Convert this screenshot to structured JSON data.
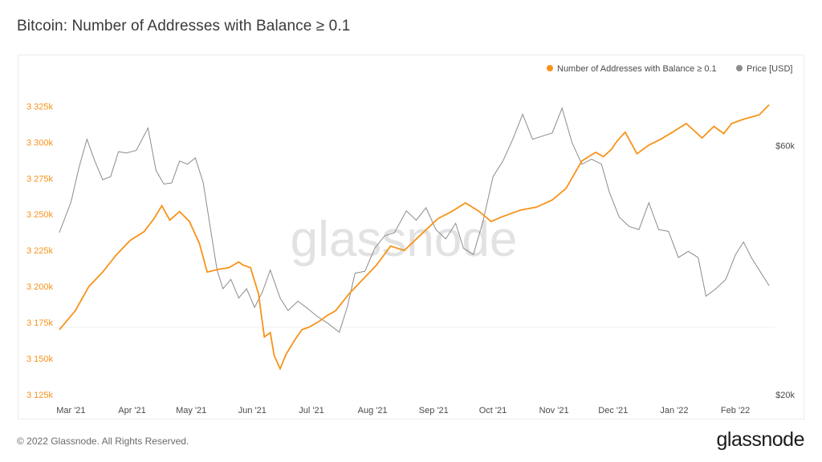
{
  "header": {
    "title": "Bitcoin: Number of Addresses with Balance ≥ 0.1"
  },
  "footer": {
    "copyright": "© 2022 Glassnode. All Rights Reserved.",
    "brand": "glassnode"
  },
  "watermark": "glassnode",
  "colors": {
    "addresses": "#f7931a",
    "price": "#8c8c8c"
  },
  "chart_data": {
    "type": "line",
    "title": "Bitcoin: Number of Addresses with Balance ≥ 0.1",
    "legend": {
      "placement": "top-right",
      "entries": [
        "Number of Addresses with Balance ≥ 0.1",
        "Price [USD]"
      ]
    },
    "x_tick_labels": [
      "Mar '21",
      "Apr '21",
      "May '21",
      "Jun '21",
      "Jul '21",
      "Aug '21",
      "Sep '21",
      "Oct '21",
      "Nov '21",
      "Dec '21",
      "Jan '22",
      "Feb '22"
    ],
    "y_left": {
      "ticks": [
        3125000,
        3150000,
        3175000,
        3200000,
        3225000,
        3250000,
        3275000,
        3300000,
        3325000
      ],
      "tick_labels": [
        "3 125k",
        "3 150k",
        "3 175k",
        "3 200k",
        "3 225k",
        "3 250k",
        "3 275k",
        "3 300k",
        "3 325k"
      ],
      "range": [
        3125000,
        3328000
      ]
    },
    "y_right": {
      "ticks": [
        20000,
        60000
      ],
      "tick_labels": [
        "$20k",
        "$60k"
      ],
      "range": [
        20000,
        67000
      ]
    },
    "grid": false,
    "series": [
      {
        "name": "Number of Addresses with Balance ≥ 0.1",
        "axis": "left",
        "x": [
          "2021-02-28",
          "2021-03-08",
          "2021-03-15",
          "2021-03-22",
          "2021-03-29",
          "2021-04-05",
          "2021-04-12",
          "2021-04-17",
          "2021-04-21",
          "2021-04-25",
          "2021-04-30",
          "2021-05-05",
          "2021-05-10",
          "2021-05-14",
          "2021-05-20",
          "2021-05-25",
          "2021-05-30",
          "2021-06-01",
          "2021-06-05",
          "2021-06-09",
          "2021-06-12",
          "2021-06-15",
          "2021-06-17",
          "2021-06-20",
          "2021-06-23",
          "2021-06-27",
          "2021-07-01",
          "2021-07-05",
          "2021-07-10",
          "2021-07-14",
          "2021-07-18",
          "2021-07-25",
          "2021-08-01",
          "2021-08-08",
          "2021-08-15",
          "2021-08-22",
          "2021-09-01",
          "2021-09-08",
          "2021-09-15",
          "2021-09-22",
          "2021-09-29",
          "2021-10-05",
          "2021-10-10",
          "2021-10-20",
          "2021-10-28",
          "2021-11-05",
          "2021-11-12",
          "2021-11-20",
          "2021-11-27",
          "2021-12-01",
          "2021-12-05",
          "2021-12-08",
          "2021-12-12",
          "2021-12-18",
          "2021-12-24",
          "2021-12-30",
          "2022-01-05",
          "2022-01-12",
          "2022-01-20",
          "2022-01-26",
          "2022-01-31",
          "2022-02-04",
          "2022-02-10",
          "2022-02-18",
          "2022-02-23"
        ],
        "values": [
          3170000,
          3183000,
          3200000,
          3210000,
          3222000,
          3232000,
          3238000,
          3247000,
          3256000,
          3246000,
          3252000,
          3245000,
          3230000,
          3210000,
          3212000,
          3213000,
          3217000,
          3215000,
          3213000,
          3195000,
          3165000,
          3168000,
          3152000,
          3143000,
          3153000,
          3162000,
          3170000,
          3172000,
          3176000,
          3180000,
          3183000,
          3195000,
          3205000,
          3215000,
          3228000,
          3225000,
          3238000,
          3247000,
          3252000,
          3258000,
          3252000,
          3245000,
          3248000,
          3253000,
          3255000,
          3260000,
          3268000,
          3287000,
          3293000,
          3290000,
          3295000,
          3301000,
          3307000,
          3292000,
          3298000,
          3302000,
          3307000,
          3313000,
          3303000,
          3311000,
          3306000,
          3313000,
          3316000,
          3319000,
          3326000
        ]
      },
      {
        "name": "Price [USD]",
        "axis": "right",
        "x": [
          "2021-02-28",
          "2021-03-03",
          "2021-03-06",
          "2021-03-10",
          "2021-03-14",
          "2021-03-18",
          "2021-03-22",
          "2021-03-26",
          "2021-03-30",
          "2021-04-03",
          "2021-04-08",
          "2021-04-14",
          "2021-04-18",
          "2021-04-22",
          "2021-04-26",
          "2021-04-30",
          "2021-05-04",
          "2021-05-08",
          "2021-05-12",
          "2021-05-16",
          "2021-05-19",
          "2021-05-22",
          "2021-05-26",
          "2021-05-30",
          "2021-06-03",
          "2021-06-07",
          "2021-06-11",
          "2021-06-15",
          "2021-06-20",
          "2021-06-24",
          "2021-06-29",
          "2021-07-04",
          "2021-07-09",
          "2021-07-14",
          "2021-07-20",
          "2021-07-24",
          "2021-07-28",
          "2021-08-02",
          "2021-08-07",
          "2021-08-12",
          "2021-08-17",
          "2021-08-23",
          "2021-08-28",
          "2021-09-02",
          "2021-09-07",
          "2021-09-12",
          "2021-09-17",
          "2021-09-21",
          "2021-09-26",
          "2021-10-01",
          "2021-10-06",
          "2021-10-11",
          "2021-10-16",
          "2021-10-21",
          "2021-10-26",
          "2021-10-31",
          "2021-11-05",
          "2021-11-10",
          "2021-11-15",
          "2021-11-20",
          "2021-11-25",
          "2021-11-30",
          "2021-12-04",
          "2021-12-09",
          "2021-12-14",
          "2021-12-19",
          "2021-12-24",
          "2021-12-29",
          "2022-01-03",
          "2022-01-08",
          "2022-01-13",
          "2022-01-18",
          "2022-01-22",
          "2022-01-27",
          "2022-02-01",
          "2022-02-06",
          "2022-02-10",
          "2022-02-14",
          "2022-02-18",
          "2022-02-23"
        ],
        "values": [
          46000,
          48500,
          51000,
          56500,
          61000,
          57500,
          54500,
          55000,
          59000,
          58800,
          59200,
          62800,
          56000,
          53800,
          54000,
          57500,
          57000,
          58000,
          54000,
          46000,
          40000,
          37000,
          38500,
          35500,
          37000,
          34000,
          36500,
          40000,
          35500,
          33500,
          35000,
          33800,
          32500,
          31500,
          30000,
          34000,
          39500,
          39800,
          43500,
          45500,
          46000,
          49500,
          48000,
          50000,
          46500,
          45000,
          47500,
          43500,
          42500,
          48000,
          55000,
          57500,
          61000,
          65000,
          61000,
          61500,
          62000,
          66000,
          60500,
          57000,
          57800,
          57000,
          52500,
          48500,
          47000,
          46500,
          50800,
          46500,
          46200,
          42000,
          43000,
          42000,
          35800,
          37000,
          38500,
          42500,
          44500,
          42000,
          40000,
          37500
        ]
      }
    ]
  }
}
